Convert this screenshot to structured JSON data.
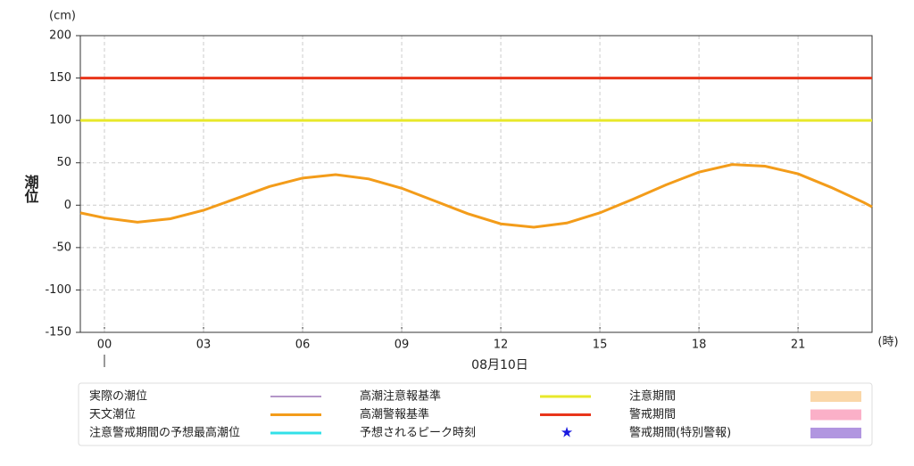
{
  "chart_data": {
    "type": "line",
    "y_label": "潮位",
    "y_unit": "(cm)",
    "x_unit": "(時)",
    "x_caption": "08月10日",
    "xlim": [
      -0.73,
      23.24
    ],
    "xticks": [
      {
        "value": 0,
        "label": "00"
      },
      {
        "value": 3,
        "label": "03"
      },
      {
        "value": 6,
        "label": "06"
      },
      {
        "value": 9,
        "label": "09"
      },
      {
        "value": 12,
        "label": "12"
      },
      {
        "value": 15,
        "label": "15"
      },
      {
        "value": 18,
        "label": "18"
      },
      {
        "value": 21,
        "label": "21"
      }
    ],
    "ylim": [
      -150,
      200
    ],
    "yticks": [
      -150,
      -100,
      -50,
      0,
      50,
      100,
      150,
      200
    ],
    "grid": true,
    "x": [
      -0.73,
      0,
      1,
      2,
      3,
      4,
      5,
      6,
      7,
      8,
      9,
      10,
      11,
      12,
      13,
      14,
      15,
      16,
      17,
      18,
      19,
      20,
      21,
      22,
      23,
      23.24
    ],
    "series": [
      {
        "name": "実際の潮位",
        "color": "#6a2c91",
        "kind": "line"
      },
      {
        "name": "天文潮位",
        "color": "#f39c1a",
        "kind": "line",
        "values": [
          -9,
          -15,
          -20,
          -16,
          -6,
          8,
          22,
          32,
          36,
          31,
          20,
          5,
          -10,
          -22,
          -26,
          -21,
          -9,
          7,
          24,
          39,
          48,
          46,
          37,
          21,
          3,
          -2
        ]
      },
      {
        "name": "注意警戒期間の予想最高潮位",
        "color": "#33e0e8",
        "kind": "line"
      },
      {
        "name": "高潮注意報基準",
        "color": "#e8e82a",
        "kind": "hline",
        "value": 100
      },
      {
        "name": "高潮警報基準",
        "color": "#e8351a",
        "kind": "hline",
        "value": 150
      },
      {
        "name": "予想されるピーク時刻",
        "color": "#1a1ae0",
        "kind": "star"
      },
      {
        "name": "注意期間",
        "color": "#fad7a8",
        "kind": "band"
      },
      {
        "name": "警戒期間",
        "color": "#fbb0c8",
        "kind": "band"
      },
      {
        "name": "警戒期間(特別警報)",
        "color": "#b196e0",
        "kind": "band"
      }
    ]
  }
}
